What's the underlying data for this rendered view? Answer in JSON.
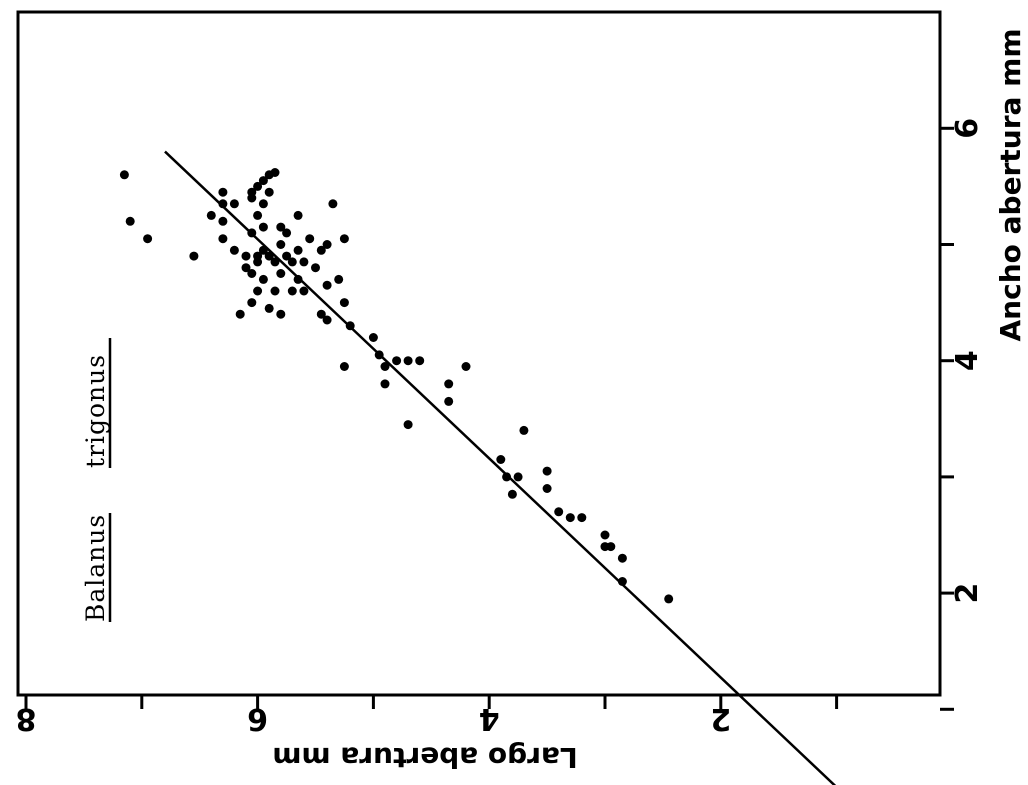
{
  "chart_data": {
    "type": "scatter",
    "title": "",
    "annotation": {
      "genus": "Balanus",
      "species": "trigonus"
    },
    "xlabel": "Largo abertura mm",
    "ylabel": "Ancho abertura mm",
    "x_ticks": [
      {
        "value": 8,
        "label": "8"
      },
      {
        "value": 7,
        "label": ""
      },
      {
        "value": 6,
        "label": "6"
      },
      {
        "value": 5,
        "label": ""
      },
      {
        "value": 4,
        "label": "4"
      },
      {
        "value": 3,
        "label": ""
      },
      {
        "value": 2,
        "label": "2"
      },
      {
        "value": 1,
        "label": ""
      }
    ],
    "y_ticks": [
      {
        "value": 1,
        "label": ""
      },
      {
        "value": 2,
        "label": "2"
      },
      {
        "value": 3,
        "label": ""
      },
      {
        "value": 4,
        "label": "4"
      },
      {
        "value": 5,
        "label": ""
      },
      {
        "value": 6,
        "label": "6"
      }
    ],
    "xlim": [
      8,
      0
    ],
    "ylim": [
      0,
      6.2
    ],
    "grid": false,
    "legend": "none",
    "fit_line": {
      "x": [
        6.8,
        1.0
      ],
      "y": [
        5.8,
        0.33
      ]
    },
    "points": [
      [
        7.15,
        5.6
      ],
      [
        7.1,
        5.2
      ],
      [
        6.95,
        5.05
      ],
      [
        6.55,
        4.9
      ],
      [
        6.4,
        5.25
      ],
      [
        6.3,
        5.45
      ],
      [
        6.3,
        5.35
      ],
      [
        6.3,
        5.2
      ],
      [
        6.3,
        5.05
      ],
      [
        6.2,
        5.35
      ],
      [
        6.2,
        4.95
      ],
      [
        6.15,
        4.4
      ],
      [
        6.1,
        4.8
      ],
      [
        6.1,
        4.9
      ],
      [
        6.05,
        5.45
      ],
      [
        6.05,
        5.4
      ],
      [
        6.05,
        5.1
      ],
      [
        6.05,
        4.75
      ],
      [
        6.05,
        4.5
      ],
      [
        6.0,
        5.5
      ],
      [
        6.0,
        5.25
      ],
      [
        6.0,
        4.9
      ],
      [
        6.0,
        4.85
      ],
      [
        6.0,
        4.6
      ],
      [
        5.95,
        5.55
      ],
      [
        5.95,
        5.35
      ],
      [
        5.95,
        5.15
      ],
      [
        5.95,
        4.95
      ],
      [
        5.95,
        4.7
      ],
      [
        5.9,
        5.6
      ],
      [
        5.9,
        5.45
      ],
      [
        5.9,
        4.9
      ],
      [
        5.9,
        4.45
      ],
      [
        5.85,
        5.62
      ],
      [
        5.85,
        4.85
      ],
      [
        5.85,
        4.6
      ],
      [
        5.8,
        5.15
      ],
      [
        5.8,
        5.0
      ],
      [
        5.8,
        4.75
      ],
      [
        5.8,
        4.4
      ],
      [
        5.75,
        5.1
      ],
      [
        5.75,
        4.9
      ],
      [
        5.7,
        4.6
      ],
      [
        5.7,
        4.85
      ],
      [
        5.65,
        5.25
      ],
      [
        5.65,
        4.95
      ],
      [
        5.65,
        4.7
      ],
      [
        5.6,
        4.6
      ],
      [
        5.6,
        4.85
      ],
      [
        5.55,
        5.05
      ],
      [
        5.5,
        4.8
      ],
      [
        5.45,
        4.95
      ],
      [
        5.45,
        4.4
      ],
      [
        5.4,
        5.0
      ],
      [
        5.4,
        4.65
      ],
      [
        5.4,
        4.35
      ],
      [
        5.35,
        5.35
      ],
      [
        5.3,
        4.7
      ],
      [
        5.25,
        5.05
      ],
      [
        5.25,
        4.5
      ],
      [
        5.25,
        3.95
      ],
      [
        5.2,
        4.3
      ],
      [
        5.0,
        4.2
      ],
      [
        4.95,
        4.05
      ],
      [
        4.9,
        3.8
      ],
      [
        4.9,
        3.95
      ],
      [
        4.8,
        4.0
      ],
      [
        4.7,
        4.0
      ],
      [
        4.7,
        3.45
      ],
      [
        4.6,
        4.0
      ],
      [
        4.35,
        3.8
      ],
      [
        4.35,
        3.65
      ],
      [
        4.2,
        3.95
      ],
      [
        3.9,
        3.15
      ],
      [
        3.85,
        3.0
      ],
      [
        3.8,
        2.85
      ],
      [
        3.75,
        3.0
      ],
      [
        3.7,
        3.4
      ],
      [
        3.5,
        3.05
      ],
      [
        3.5,
        2.9
      ],
      [
        3.4,
        2.7
      ],
      [
        3.3,
        2.65
      ],
      [
        3.2,
        2.65
      ],
      [
        3.0,
        2.5
      ],
      [
        3.0,
        2.4
      ],
      [
        2.95,
        2.4
      ],
      [
        2.85,
        2.3
      ],
      [
        2.85,
        2.1
      ],
      [
        2.45,
        1.95
      ]
    ]
  }
}
